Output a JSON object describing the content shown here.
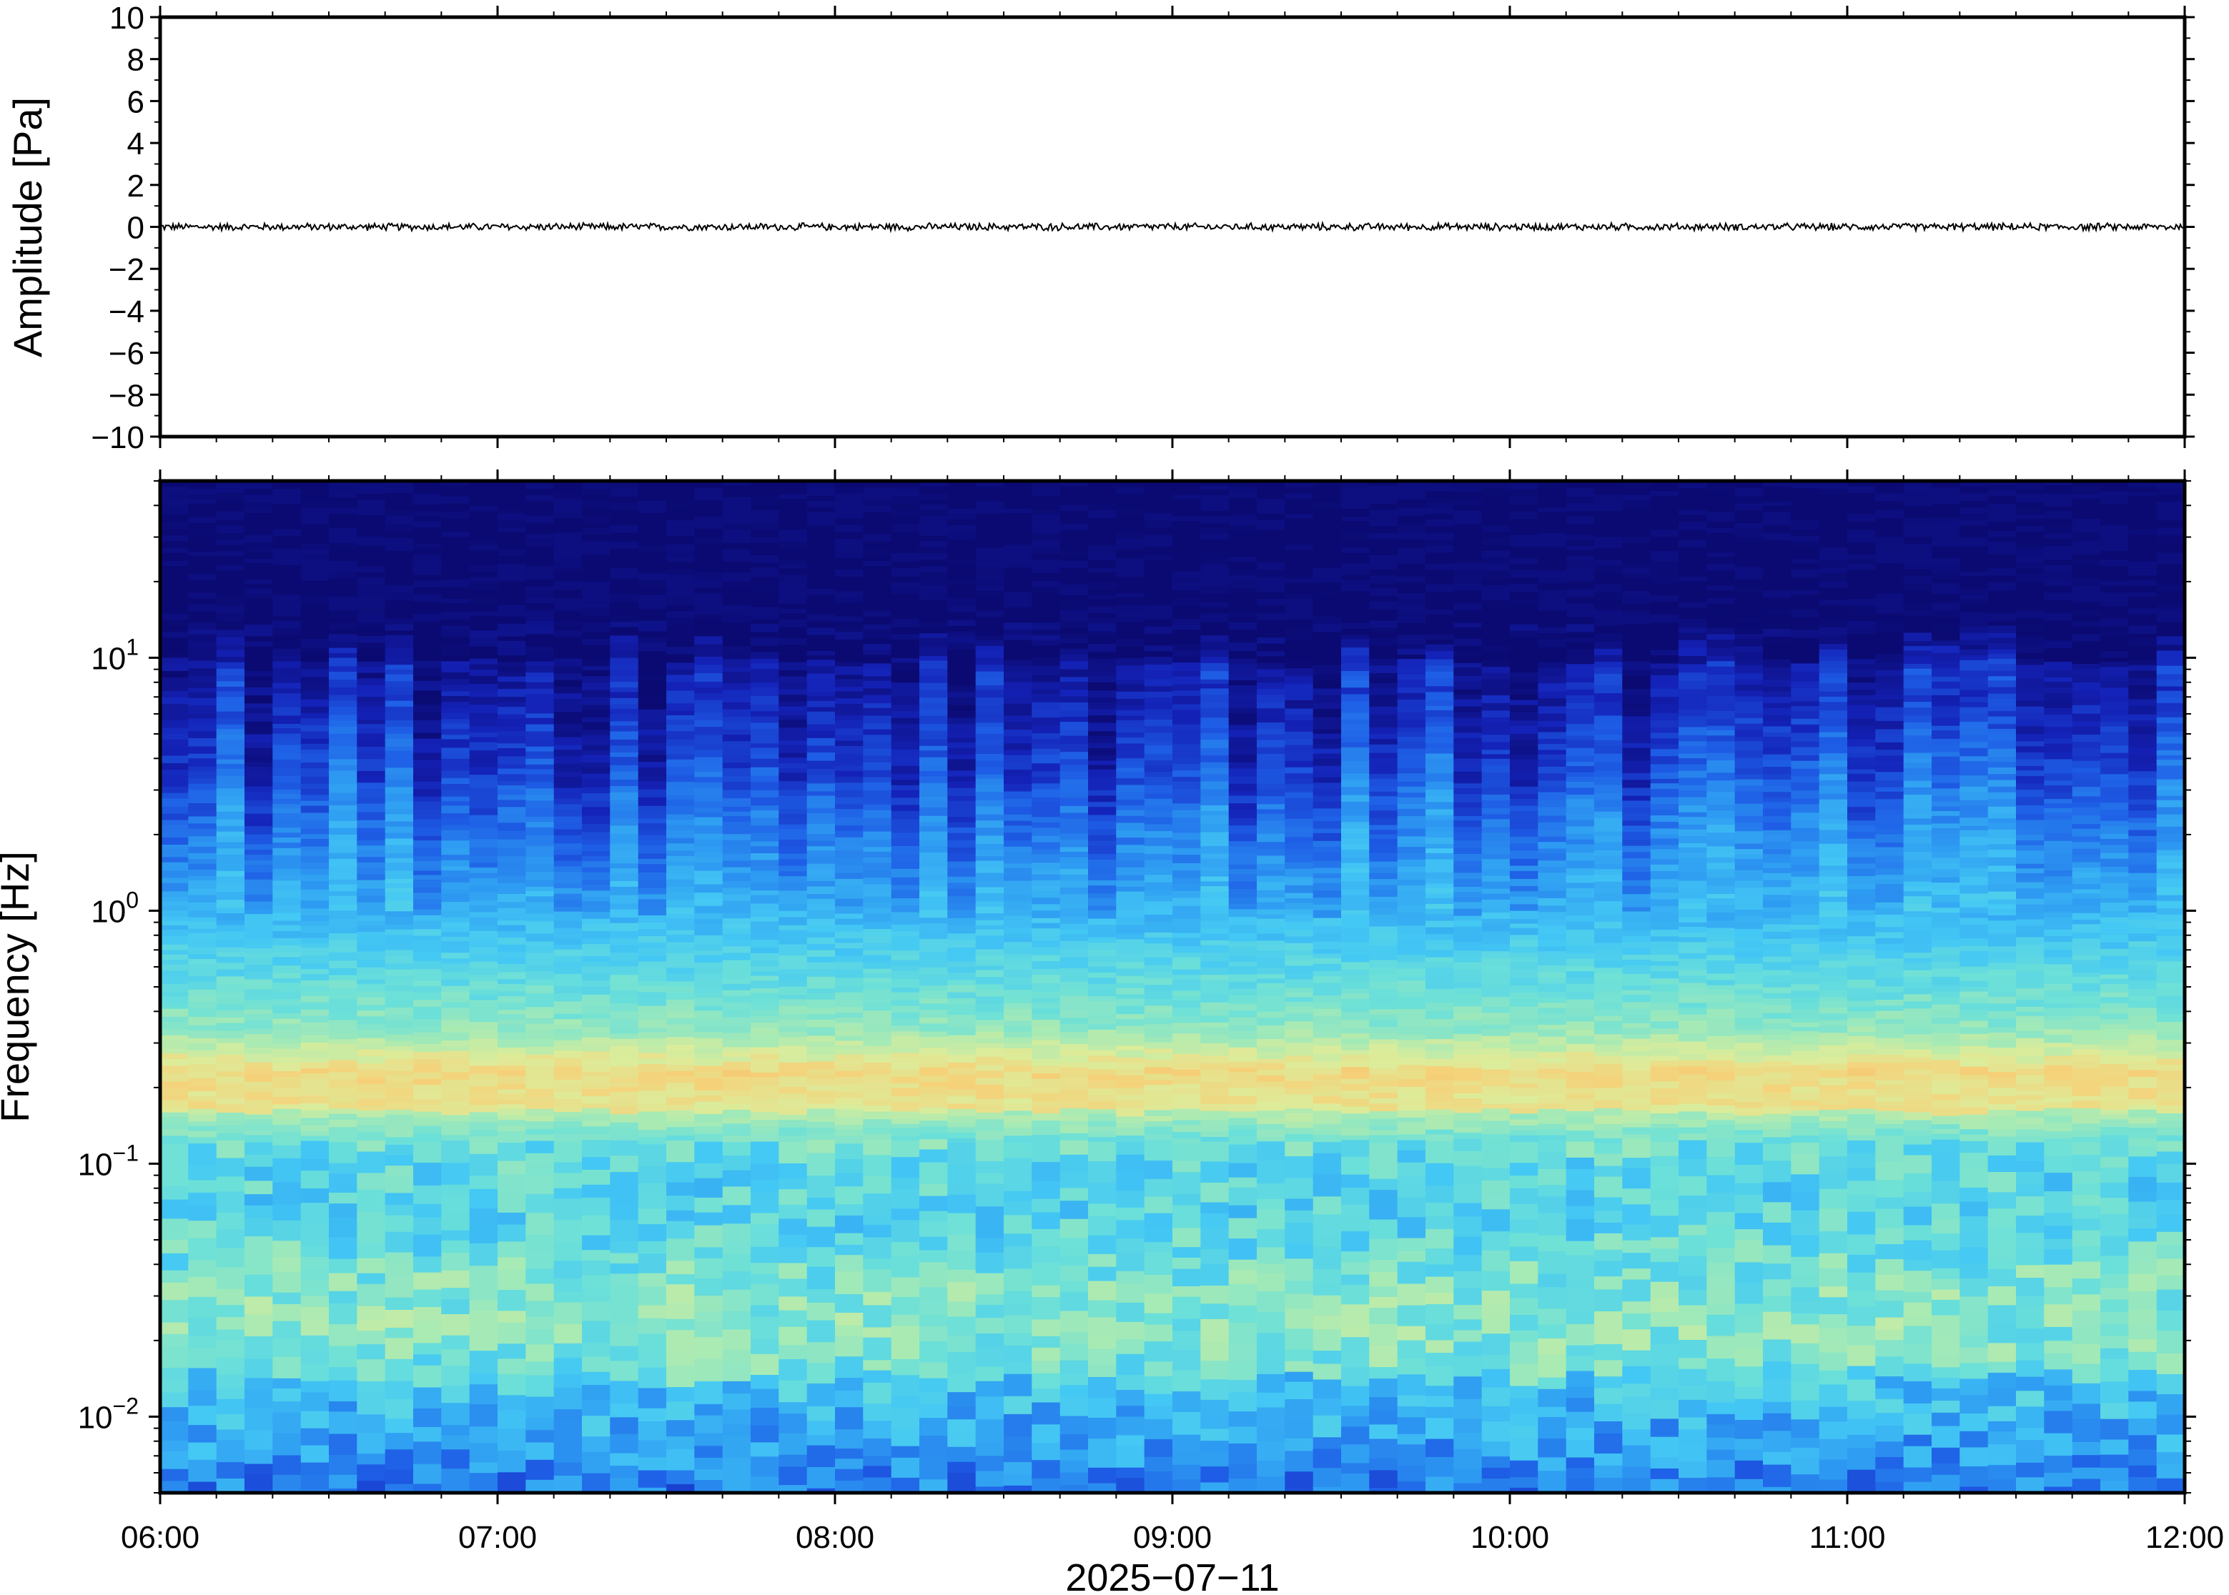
{
  "chart_data": [
    {
      "type": "line",
      "ylabel": "Amplitude [Pa]",
      "ylim": [
        -10,
        10
      ],
      "yticks": [
        10,
        8,
        6,
        4,
        2,
        0,
        -2,
        -4,
        -6,
        -8,
        -10
      ],
      "ytick_labels": [
        "10",
        "8",
        "6",
        "4",
        "2",
        "0",
        "−2",
        "−4",
        "−6",
        "−8",
        "−10"
      ],
      "x_range": [
        "06:00",
        "12:00"
      ],
      "series": [
        {
          "values_summary": "noise trace around 0 Pa, peak amplitude about 0.2 Pa",
          "mean": 0,
          "approx_peak": 0.2
        }
      ],
      "grid": false,
      "line_color": "#000000"
    },
    {
      "type": "heatmap",
      "ylabel": "Frequency [Hz]",
      "yscale": "log",
      "ylim": [
        0.005,
        50
      ],
      "ytick_labels": [
        {
          "value": 10,
          "base": "10",
          "exp": "1"
        },
        {
          "value": 1,
          "base": "10",
          "exp": "0"
        },
        {
          "value": 0.1,
          "base": "10",
          "exp": "−1"
        },
        {
          "value": 0.01,
          "base": "10",
          "exp": "−2"
        }
      ],
      "x_range": [
        "06:00",
        "12:00"
      ],
      "xticks": [
        "06:00",
        "07:00",
        "08:00",
        "09:00",
        "10:00",
        "11:00",
        "12:00"
      ],
      "xlabel": "2025−07−11",
      "colormap": [
        "#0b0a72",
        "#1422b8",
        "#1e5ee6",
        "#2e9cf2",
        "#44c8f4",
        "#6ce0d8",
        "#a8eab4",
        "#dcec9a",
        "#f5d27a",
        "#f5aa5e"
      ],
      "description_bands": [
        {
          "freq_range": [
            10,
            50
          ],
          "level": "lowest (dark navy)"
        },
        {
          "freq_range": [
            1,
            10
          ],
          "level": "low (blue to light blue)"
        },
        {
          "freq_range": [
            0.12,
            0.3
          ],
          "level": "highest (yellow-orange microbarom band)"
        },
        {
          "freq_range": [
            0.005,
            0.12
          ],
          "level": "medium (green/cyan, variable)"
        }
      ]
    }
  ]
}
